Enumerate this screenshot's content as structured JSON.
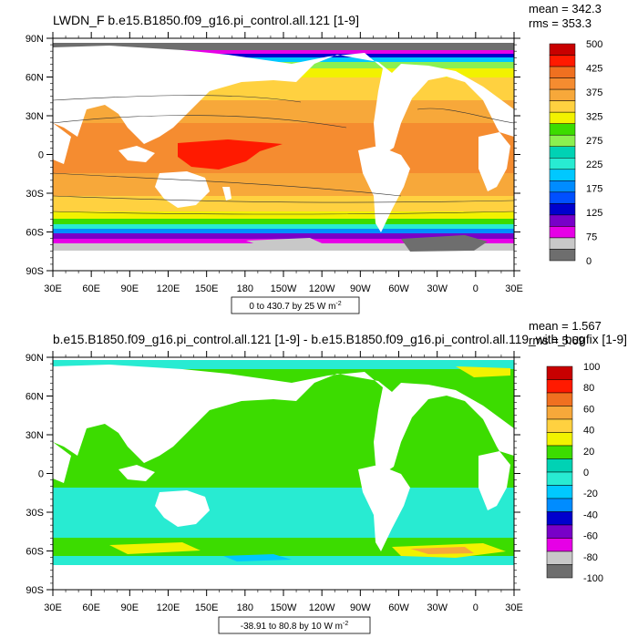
{
  "panels": [
    {
      "title": "LWDN_F b.e15.B1850.f09_g16.pi_control.all.121 [1-9]",
      "stats": [
        "mean = 342.3",
        "rms = 353.3"
      ],
      "info": "0 to 430.7 by 25  W m",
      "info_sup": "-2",
      "colorbar_labels": [
        "500",
        "425",
        "375",
        "325",
        "275",
        "225",
        "175",
        "125",
        "75",
        "0"
      ],
      "colorbar_colors": [
        "#c80000",
        "#ff1a00",
        "#f07020",
        "#f58c30",
        "#f7a83a",
        "#ffd140",
        "#f2f200",
        "#3cdc00",
        "#8cf050",
        "#00d2b4",
        "#28ebd2",
        "#00c8ff",
        "#008cff",
        "#0050ff",
        "#0000cd",
        "#7800c8",
        "#e600e6",
        "#c8c8c8",
        "#6e6e6e"
      ]
    },
    {
      "title": "b.e15.B1850.f09_g16.pi_control.all.121 [1-9] - b.e15.B1850.f09_g16.pi_control.all.119_with_bugfix [1-9]",
      "stats": [
        "mean = 1.567",
        "rms = 5.69"
      ],
      "info": "-38.91 to 80.8 by 10  W m",
      "info_sup": "-2",
      "colorbar_labels": [
        "100",
        "80",
        "60",
        "40",
        "20",
        "0",
        "-20",
        "-40",
        "-60",
        "-80",
        "-100"
      ],
      "colorbar_colors": [
        "#c80000",
        "#ff1a00",
        "#f07020",
        "#f7a83a",
        "#ffd140",
        "#f2f200",
        "#3cdc00",
        "#00d2b4",
        "#28ebd2",
        "#00c8ff",
        "#008cff",
        "#0000cd",
        "#7800c8",
        "#e600e6",
        "#c8c8c8",
        "#6e6e6e"
      ]
    }
  ],
  "lat_labels": [
    "90N",
    "60N",
    "30N",
    "0",
    "30S",
    "60S",
    "90S"
  ],
  "lon_labels": [
    "30E",
    "60E",
    "90E",
    "120E",
    "150E",
    "180",
    "150W",
    "120W",
    "90W",
    "60W",
    "30W",
    "0",
    "30E"
  ],
  "chart_data": [
    {
      "type": "heatmap",
      "title": "LWDN_F b.e15.B1850.f09_g16.pi_control.all.121 [1-9]",
      "mean": 342.3,
      "rms": 353.3,
      "units": "W m-2",
      "contour_min": 0,
      "contour_max": 430.7,
      "contour_interval": 25,
      "x_ticks": [
        "30E",
        "60E",
        "90E",
        "120E",
        "150E",
        "180",
        "150W",
        "120W",
        "90W",
        "60W",
        "30W",
        "0",
        "30E"
      ],
      "y_ticks": [
        "90N",
        "60N",
        "30N",
        "0",
        "30S",
        "60S",
        "90S"
      ],
      "colorbar_labels": [
        500,
        425,
        375,
        325,
        275,
        225,
        175,
        125,
        75,
        0
      ],
      "zonal_profile": [
        {
          "lat": 80,
          "value": 175
        },
        {
          "lat": 70,
          "value": 240
        },
        {
          "lat": 60,
          "value": 280
        },
        {
          "lat": 50,
          "value": 310
        },
        {
          "lat": 40,
          "value": 340
        },
        {
          "lat": 30,
          "value": 375
        },
        {
          "lat": 20,
          "value": 395
        },
        {
          "lat": 10,
          "value": 410
        },
        {
          "lat": 0,
          "value": 410
        },
        {
          "lat": -10,
          "value": 400
        },
        {
          "lat": -20,
          "value": 385
        },
        {
          "lat": -30,
          "value": 360
        },
        {
          "lat": -40,
          "value": 335
        },
        {
          "lat": -50,
          "value": 300
        },
        {
          "lat": -55,
          "value": 275
        },
        {
          "lat": -60,
          "value": 240
        },
        {
          "lat": -65,
          "value": 180
        },
        {
          "lat": -70,
          "value": 100
        }
      ]
    },
    {
      "type": "heatmap",
      "title": "b.e15.B1850.f09_g16.pi_control.all.121 [1-9] - b.e15.B1850.f09_g16.pi_control.all.119_with_bugfix [1-9]",
      "mean": 1.567,
      "rms": 5.69,
      "units": "W m-2",
      "contour_min": -38.91,
      "contour_max": 80.8,
      "contour_interval": 10,
      "x_ticks": [
        "30E",
        "60E",
        "90E",
        "120E",
        "150E",
        "180",
        "150W",
        "120W",
        "90W",
        "60W",
        "30W",
        "0",
        "30E"
      ],
      "y_ticks": [
        "90N",
        "60N",
        "30N",
        "0",
        "30S",
        "60S",
        "90S"
      ],
      "colorbar_labels": [
        100,
        80,
        60,
        40,
        20,
        0,
        -20,
        -40,
        -60,
        -80,
        -100
      ],
      "zonal_profile": [
        {
          "lat": 80,
          "value": 15
        },
        {
          "lat": 70,
          "value": 10
        },
        {
          "lat": 60,
          "value": 5
        },
        {
          "lat": 40,
          "value": 5
        },
        {
          "lat": 20,
          "value": 5
        },
        {
          "lat": 0,
          "value": 5
        },
        {
          "lat": -20,
          "value": -5
        },
        {
          "lat": -40,
          "value": 5
        },
        {
          "lat": -55,
          "value": 20
        },
        {
          "lat": -62,
          "value": 10
        }
      ]
    }
  ]
}
